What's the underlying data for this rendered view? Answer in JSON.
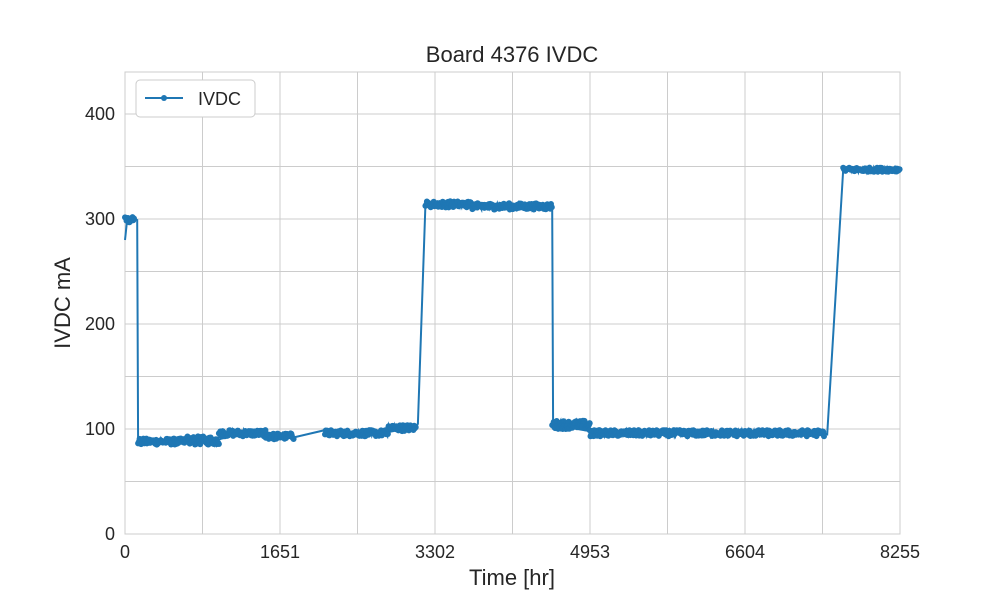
{
  "chart_data": {
    "type": "line",
    "title": "Board 4376 IVDC",
    "xlabel": "Time [hr]",
    "ylabel": "IVDC mA",
    "xlim": [
      0,
      8255
    ],
    "ylim": [
      0,
      440
    ],
    "xticks": [
      0,
      1651,
      3302,
      4953,
      6604,
      8255
    ],
    "yticks": [
      0,
      100,
      200,
      300,
      400
    ],
    "grid": true,
    "legend_position": "top-left",
    "series": [
      {
        "name": "IVDC",
        "color": "#1f77b4",
        "marker": "circle",
        "segments": [
          {
            "x_start": 0,
            "x_end": 100,
            "mean": 299,
            "noise": 3
          },
          {
            "x_start": 140,
            "x_end": 650,
            "mean": 88,
            "noise": 3
          },
          {
            "x_start": 650,
            "x_end": 1000,
            "mean": 89,
            "noise": 4
          },
          {
            "x_start": 1000,
            "x_end": 1500,
            "mean": 96,
            "noise": 3
          },
          {
            "x_start": 1500,
            "x_end": 1800,
            "mean": 93,
            "noise": 3
          },
          {
            "x_start": 2130,
            "x_end": 2800,
            "mean": 96,
            "noise": 3
          },
          {
            "x_start": 2800,
            "x_end": 3100,
            "mean": 101,
            "noise": 3
          },
          {
            "x_start": 3200,
            "x_end": 3700,
            "mean": 314,
            "noise": 3
          },
          {
            "x_start": 3700,
            "x_end": 4550,
            "mean": 312,
            "noise": 3
          },
          {
            "x_start": 4550,
            "x_end": 4950,
            "mean": 104,
            "noise": 4
          },
          {
            "x_start": 4950,
            "x_end": 7450,
            "mean": 96,
            "noise": 3
          },
          {
            "x_start": 7650,
            "x_end": 8255,
            "mean": 347,
            "noise": 2
          }
        ],
        "points": [
          [
            0,
            280
          ],
          [
            20,
            297
          ],
          [
            60,
            301
          ],
          [
            100,
            300
          ],
          [
            130,
            299
          ],
          [
            140,
            86
          ],
          [
            400,
            88
          ],
          [
            650,
            89
          ],
          [
            1000,
            90
          ],
          [
            1200,
            96
          ],
          [
            1500,
            97
          ],
          [
            1800,
            92
          ],
          [
            2130,
            99
          ],
          [
            2200,
            96
          ],
          [
            2800,
            97
          ],
          [
            3100,
            102
          ],
          [
            3120,
            105
          ],
          [
            3200,
            313
          ],
          [
            3700,
            316
          ],
          [
            4550,
            311
          ],
          [
            4550,
            310
          ],
          [
            4560,
            104
          ],
          [
            4950,
            98
          ],
          [
            7450,
            96
          ],
          [
            7480,
            95
          ],
          [
            7650,
            347
          ],
          [
            8255,
            346
          ]
        ]
      }
    ]
  }
}
